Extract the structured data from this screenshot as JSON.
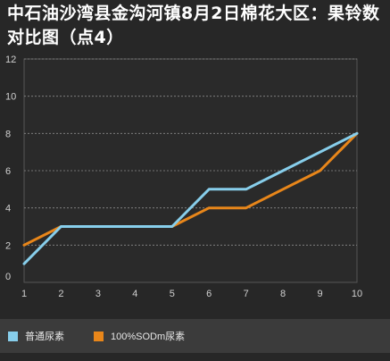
{
  "title": "中石油沙湾县金沟河镇8月2日棉花大区：果铃数对比图（点4）",
  "colors": {
    "background": "#272727",
    "plot_background": "#2a2a2a",
    "grid": "#8a8a8a",
    "series1": "#87ceeb",
    "series2": "#e8861a"
  },
  "chart_data": {
    "type": "line",
    "x": [
      1,
      2,
      3,
      4,
      5,
      6,
      7,
      8,
      9,
      10
    ],
    "ylim": [
      0,
      12
    ],
    "yticks": [
      0,
      2,
      4,
      6,
      8,
      10,
      12
    ],
    "grid": true,
    "legend": "bottom",
    "series": [
      {
        "name": "普通尿素",
        "color": "#87ceeb",
        "values": [
          1,
          3,
          3,
          3,
          3,
          5,
          5,
          6,
          7,
          8
        ]
      },
      {
        "name": "100%SODm尿素",
        "color": "#e8861a",
        "values": [
          2,
          3,
          3,
          3,
          3,
          4,
          4,
          5,
          6,
          8
        ]
      }
    ]
  }
}
